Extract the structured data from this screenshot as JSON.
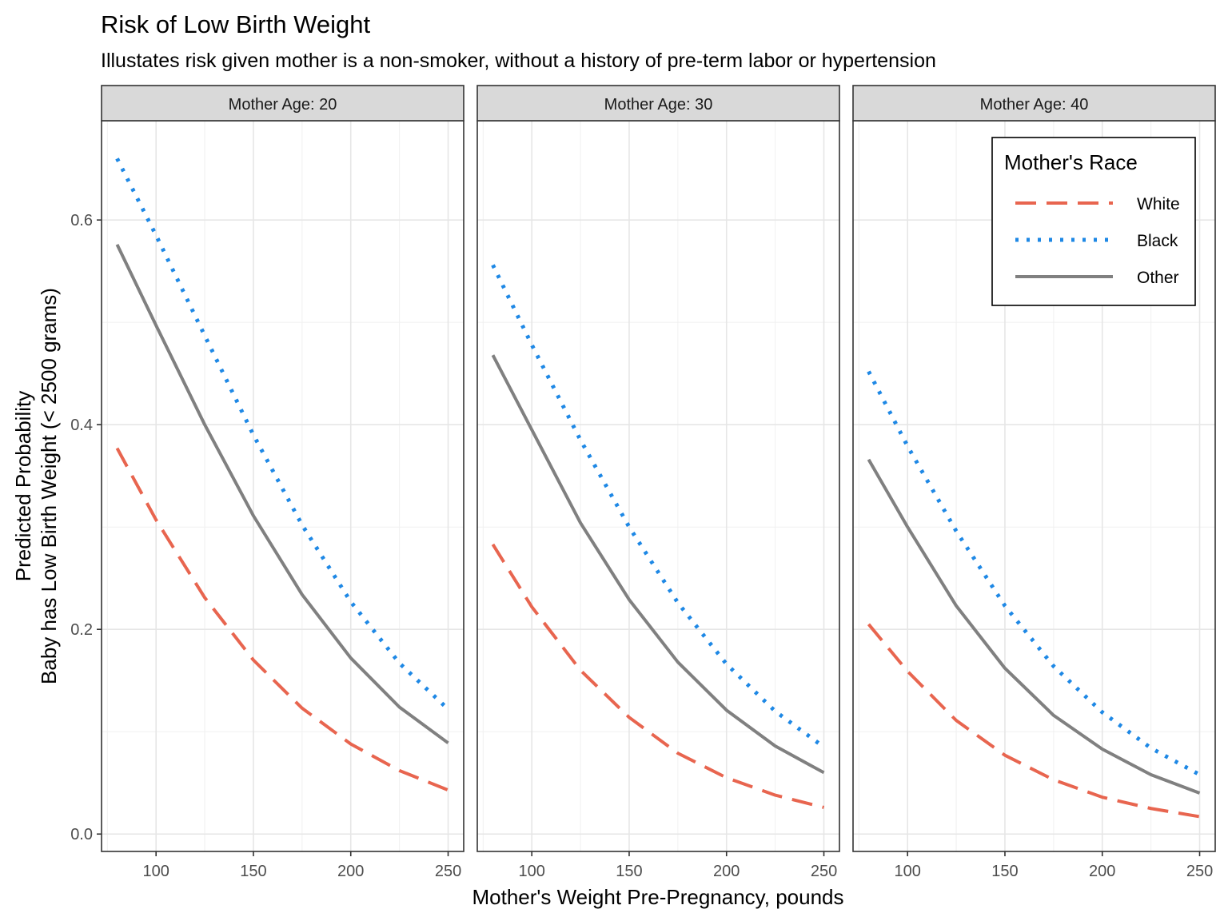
{
  "chart_data": {
    "type": "line",
    "title": "Risk of Low Birth Weight",
    "subtitle": "Illustates risk given mother is a non-smoker, without a history of pre-term labor or hypertension",
    "xlabel": "Mother's Weight Pre-Pregnancy, pounds",
    "ylabel_lines": [
      "Predicted Probability",
      "Baby has Low Birth Weight (< 2500 grams)"
    ],
    "xlim": [
      72,
      258
    ],
    "ylim": [
      -0.017,
      0.697
    ],
    "x_ticks": [
      100,
      150,
      200,
      250
    ],
    "y_ticks": [
      0.0,
      0.2,
      0.4,
      0.6
    ],
    "y_tick_labels": [
      "0.0",
      "0.2",
      "0.4",
      "0.6"
    ],
    "grid": true,
    "legend": {
      "title": "Mother's Race",
      "position": "top-right (inside last panel)",
      "entries": [
        "White",
        "Black",
        "Other"
      ]
    },
    "series_styles": [
      {
        "name": "White",
        "color": "#E8654F",
        "dash": "long-dash"
      },
      {
        "name": "Black",
        "color": "#1E88E5",
        "dash": "dotted"
      },
      {
        "name": "Other",
        "color": "#808080",
        "dash": "solid"
      }
    ],
    "x": [
      80,
      100,
      125,
      150,
      175,
      200,
      225,
      250
    ],
    "panels": [
      {
        "strip": "Mother Age: 20",
        "series": [
          {
            "name": "White",
            "values": [
              0.377,
              0.307,
              0.231,
              0.17,
              0.123,
              0.088,
              0.062,
              0.043
            ]
          },
          {
            "name": "Black",
            "values": [
              0.66,
              0.585,
              0.487,
              0.39,
              0.302,
              0.227,
              0.167,
              0.122
            ]
          },
          {
            "name": "Other",
            "values": [
              0.576,
              0.497,
              0.4,
              0.311,
              0.234,
              0.172,
              0.124,
              0.089
            ]
          }
        ]
      },
      {
        "strip": "Mother Age: 30",
        "series": [
          {
            "name": "White",
            "values": [
              0.283,
              0.222,
              0.16,
              0.114,
              0.079,
              0.055,
              0.038,
              0.026
            ]
          },
          {
            "name": "Black",
            "values": [
              0.556,
              0.478,
              0.385,
              0.3,
              0.226,
              0.166,
              0.12,
              0.085
            ]
          },
          {
            "name": "Other",
            "values": [
              0.468,
              0.395,
              0.304,
              0.229,
              0.168,
              0.121,
              0.086,
              0.06
            ]
          }
        ]
      },
      {
        "strip": "Mother Age: 40",
        "series": [
          {
            "name": "White",
            "values": [
              0.205,
              0.159,
              0.111,
              0.077,
              0.053,
              0.036,
              0.025,
              0.017
            ]
          },
          {
            "name": "Black",
            "values": [
              0.452,
              0.379,
              0.296,
              0.223,
              0.164,
              0.119,
              0.084,
              0.058
            ]
          },
          {
            "name": "Other",
            "values": [
              0.366,
              0.3,
              0.223,
              0.162,
              0.116,
              0.083,
              0.058,
              0.04
            ]
          }
        ]
      }
    ]
  }
}
